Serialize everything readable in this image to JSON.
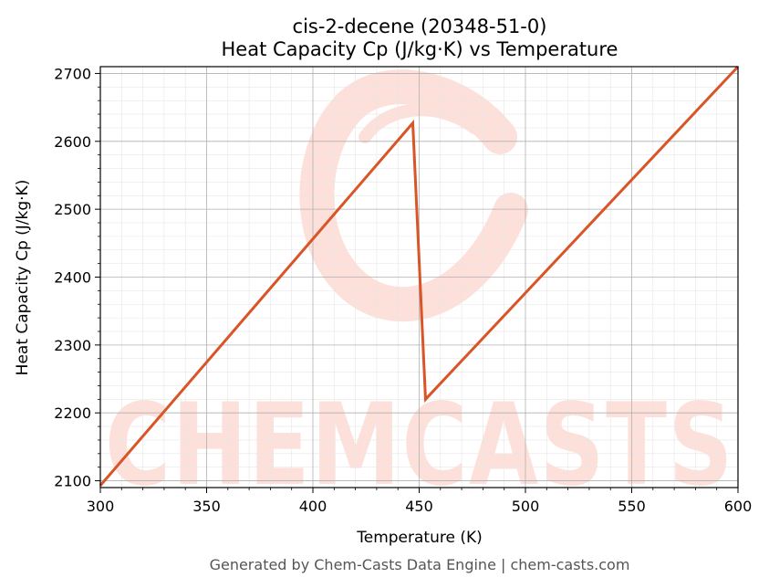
{
  "chart_data": {
    "type": "line",
    "title": "cis-2-decene (20348-51-0)",
    "subtitle": "Heat Capacity Cp (J/kg·K) vs Temperature",
    "xlabel": "Temperature (K)",
    "ylabel": "Heat Capacity Cp (J/kg·K)",
    "xlim": [
      300,
      600
    ],
    "ylim": [
      2090,
      2710
    ],
    "xticks": [
      300,
      350,
      400,
      450,
      500,
      550,
      600
    ],
    "yticks": [
      2100,
      2200,
      2300,
      2400,
      2500,
      2600,
      2700
    ],
    "grid": true,
    "legend": "none",
    "series": [
      {
        "color": "#d95427",
        "x": [
          300,
          447,
          453,
          600
        ],
        "y": [
          2093,
          2627,
          2220,
          2710
        ]
      }
    ]
  },
  "watermark": "CHEMCASTS",
  "footer": "Generated by Chem-Casts Data Engine | chem-casts.com",
  "colors": {
    "line": "#d95427",
    "watermark": "#fde0da",
    "grid_major": "#b0b0b0",
    "grid_minor": "#e6e6e6"
  }
}
